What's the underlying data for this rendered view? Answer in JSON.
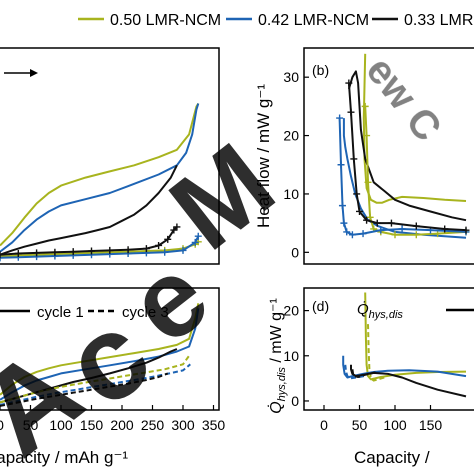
{
  "colors": {
    "lmr050": "#a8b41e",
    "lmr042": "#1e64b4",
    "lmr033": "#111111",
    "watermark_dark": "#2a2a2a",
    "watermark_blue": "#5aa8e6"
  },
  "legend": {
    "entries": [
      "0.50 LMR-NCM",
      "0.42 LMR-NCM",
      "0.33 LMR-NC"
    ]
  },
  "chart_data": [
    {
      "id": "a",
      "type": "line",
      "panel_label": "",
      "xlim": [
        0,
        350
      ],
      "ylim": [
        0,
        35
      ],
      "annotations": [],
      "series": [
        {
          "color_key": "lmr050",
          "style": "solid",
          "x": [
            0,
            20,
            40,
            60,
            80,
            100,
            140,
            180,
            220,
            260,
            290,
            310,
            322,
            325
          ],
          "y": [
            3,
            5,
            7.5,
            9.8,
            11.5,
            12.7,
            14,
            15,
            16,
            17.3,
            18.5,
            21,
            25.5,
            26
          ]
        },
        {
          "color_key": "lmr042",
          "style": "solid",
          "x": [
            0,
            20,
            40,
            60,
            80,
            100,
            140,
            180,
            220,
            260,
            290,
            305,
            315,
            322,
            325
          ],
          "y": [
            2,
            3.5,
            5.5,
            7.2,
            8.5,
            9.5,
            10.5,
            11.5,
            13,
            14.5,
            16,
            18,
            21,
            25,
            26
          ]
        },
        {
          "color_key": "lmr033",
          "style": "solid",
          "x": [
            0,
            20,
            40,
            60,
            80,
            100,
            120,
            140,
            160,
            180,
            200,
            220,
            240,
            260,
            280,
            290
          ],
          "y": [
            1.5,
            2.2,
            2.8,
            3.3,
            3.8,
            4.2,
            4.6,
            5,
            5.5,
            6,
            7,
            8,
            9.5,
            11.5,
            14,
            16
          ]
        },
        {
          "color_key": "lmr050",
          "style": "cross",
          "x": [
            0,
            30,
            60,
            90,
            120,
            150,
            180,
            210,
            240,
            270,
            300,
            320,
            325
          ],
          "y": [
            1.2,
            1.4,
            1.5,
            1.6,
            1.7,
            1.8,
            1.9,
            2,
            2.1,
            2.2,
            2.5,
            3.2,
            3.6
          ]
        },
        {
          "color_key": "lmr042",
          "style": "cross",
          "x": [
            0,
            30,
            60,
            90,
            120,
            150,
            180,
            210,
            240,
            270,
            300,
            320,
            325
          ],
          "y": [
            1,
            1.1,
            1.2,
            1.3,
            1.4,
            1.5,
            1.6,
            1.7,
            1.8,
            1.9,
            2.2,
            3.5,
            4.5
          ]
        },
        {
          "color_key": "lmr033",
          "style": "cross",
          "x": [
            0,
            30,
            60,
            90,
            120,
            150,
            180,
            210,
            240,
            260,
            275,
            285,
            290
          ],
          "y": [
            1.5,
            1.7,
            1.8,
            1.9,
            2,
            2.1,
            2.2,
            2.3,
            2.5,
            3,
            4,
            5.5,
            6
          ]
        }
      ]
    },
    {
      "id": "b",
      "type": "line",
      "panel_label": "(b)",
      "ylabel": "Heat flow / mW g⁻¹",
      "xlim": [
        0,
        350
      ],
      "ylim": [
        -2,
        35
      ],
      "yticks": [
        0,
        10,
        20,
        30
      ],
      "series": [
        {
          "color_key": "lmr050",
          "style": "solid",
          "x": [
            58,
            56,
            57,
            60,
            66,
            74,
            82,
            92,
            110,
            140,
            170,
            200
          ],
          "y": [
            34,
            23,
            16,
            11,
            9,
            8.5,
            8.5,
            9,
            9.5,
            9.3,
            9,
            8.8
          ]
        },
        {
          "color_key": "lmr042",
          "style": "solid",
          "x": [
            28,
            28,
            30,
            33,
            38,
            44,
            52,
            62,
            76,
            100,
            140,
            200
          ],
          "y": [
            23,
            20,
            18,
            16,
            13,
            10,
            7.5,
            5.5,
            4.5,
            3.5,
            3,
            2.5
          ]
        },
        {
          "color_key": "lmr033",
          "style": "solid",
          "x": [
            35,
            40,
            45,
            48,
            50,
            52,
            58,
            70,
            85,
            100,
            120,
            150,
            180,
            200
          ],
          "y": [
            28,
            30,
            31,
            29,
            25,
            21,
            16,
            12,
            10.5,
            9,
            8,
            7,
            6,
            5.5
          ]
        },
        {
          "color_key": "lmr050",
          "style": "cross",
          "x": [
            58,
            60,
            62,
            65,
            70,
            80,
            100,
            130,
            160,
            200
          ],
          "y": [
            25,
            20,
            12,
            6,
            4,
            3.5,
            3,
            3,
            3.2,
            3.5
          ]
        },
        {
          "color_key": "lmr042",
          "style": "cross",
          "x": [
            22,
            24,
            26,
            28,
            32,
            40,
            55,
            80,
            110,
            150,
            200
          ],
          "y": [
            23,
            15,
            8,
            5,
            3.5,
            3,
            3.2,
            3.8,
            4,
            3.8,
            3.5
          ]
        },
        {
          "color_key": "lmr033",
          "style": "cross",
          "x": [
            35,
            38,
            42,
            46,
            50,
            60,
            75,
            95,
            130,
            170,
            200
          ],
          "y": [
            29,
            24,
            16,
            10,
            7,
            5.5,
            5,
            5,
            4.5,
            4,
            3.8
          ]
        }
      ]
    },
    {
      "id": "c",
      "type": "line",
      "panel_label": "",
      "xlabel": "Capacity / mAh g⁻¹",
      "xlim": [
        0,
        360
      ],
      "ylim": [
        0,
        24
      ],
      "xticks": [
        0,
        50,
        100,
        150,
        200,
        250,
        300,
        350
      ],
      "xticklabels": [
        "0",
        "50",
        "100",
        "150",
        "200",
        "250",
        "300",
        "350"
      ],
      "legend": {
        "entries": [
          "cycle 1",
          "cycle 3"
        ]
      },
      "series": [
        {
          "color_key": "lmr050",
          "style": "solid",
          "x": [
            0,
            20,
            40,
            60,
            80,
            100,
            140,
            180,
            220,
            260,
            290,
            310,
            320,
            325
          ],
          "y": [
            3,
            5,
            6.5,
            7.5,
            8.2,
            8.8,
            9.6,
            10.4,
            11.2,
            12,
            12.8,
            14,
            18,
            21
          ]
        },
        {
          "color_key": "lmr042",
          "style": "solid",
          "x": [
            0,
            20,
            40,
            60,
            80,
            100,
            140,
            180,
            220,
            260,
            290,
            310,
            320,
            325
          ],
          "y": [
            2,
            3.5,
            4.8,
            5.8,
            6.5,
            7.2,
            8,
            8.8,
            9.6,
            10.5,
            11.5,
            12.5,
            16,
            20
          ]
        },
        {
          "color_key": "lmr033",
          "style": "solid",
          "x": [
            0,
            30,
            60,
            90,
            120,
            150,
            180,
            210,
            240,
            260,
            280,
            290
          ],
          "y": [
            1.5,
            2.5,
            3.5,
            4.5,
            5.5,
            6.3,
            7.2,
            8.2,
            9.3,
            10.3,
            11.5,
            12
          ]
        },
        {
          "color_key": "lmr050",
          "style": "dashed",
          "x": [
            0,
            30,
            60,
            90,
            120,
            150,
            180,
            210,
            240,
            270,
            300,
            312
          ],
          "y": [
            1.5,
            2.5,
            3.5,
            4.3,
            5,
            5.6,
            6.2,
            6.8,
            7.4,
            8,
            9,
            11
          ]
        },
        {
          "color_key": "lmr042",
          "style": "dashed",
          "x": [
            0,
            30,
            60,
            90,
            120,
            150,
            180,
            210,
            240,
            270,
            300,
            312
          ],
          "y": [
            1,
            1.8,
            2.6,
            3.3,
            3.9,
            4.5,
            5.1,
            5.7,
            6.3,
            7,
            7.8,
            9
          ]
        },
        {
          "color_key": "lmr033",
          "style": "dashed",
          "x": [
            0,
            30,
            60,
            90,
            120,
            150,
            180,
            210,
            240,
            260,
            275
          ],
          "y": [
            0.8,
            1.5,
            2.2,
            2.8,
            3.4,
            4,
            4.6,
            5.2,
            5.9,
            6.5,
            7.2
          ]
        }
      ]
    },
    {
      "id": "d",
      "type": "line",
      "panel_label": "(d)",
      "ylabel_main": "Q̇",
      "ylabel_sub": "hys,dis",
      "ylabel_rest": " / mW g⁻¹",
      "xlabel": "Capacity / ",
      "xlim": [
        0,
        350
      ],
      "ylim": [
        -2,
        25
      ],
      "xticks": [
        0,
        50,
        100,
        150
      ],
      "xticklabels": [
        "0",
        "50",
        "100",
        "150"
      ],
      "yticks": [
        0,
        10,
        20
      ],
      "legend": {
        "main": "Q̇",
        "sub": "hys,dis"
      },
      "series": [
        {
          "color_key": "lmr050",
          "style": "solid",
          "x": [
            58,
            59,
            60,
            62,
            66,
            72,
            80,
            100,
            130,
            160,
            200
          ],
          "y": [
            24,
            14,
            8,
            5.5,
            4.8,
            5,
            5.3,
            5.8,
            6.2,
            6.4,
            6.5
          ]
        },
        {
          "color_key": "lmr050",
          "style": "dashed",
          "x": [
            62,
            63,
            64,
            66,
            70,
            76,
            85
          ],
          "y": [
            17,
            11,
            7,
            5,
            4.5,
            4.8,
            5.2
          ]
        },
        {
          "color_key": "lmr042",
          "style": "solid",
          "x": [
            27,
            27,
            29,
            33,
            40,
            55,
            70,
            90,
            120,
            160,
            200
          ],
          "y": [
            10,
            8,
            6,
            5.2,
            5.5,
            6,
            6.4,
            6.7,
            6.8,
            6.5,
            5.5
          ]
        },
        {
          "color_key": "lmr042",
          "style": "dashed",
          "x": [
            30,
            31,
            33,
            37,
            45,
            60
          ],
          "y": [
            8,
            6.5,
            5.5,
            5,
            5.2,
            5.6
          ]
        },
        {
          "color_key": "lmr033",
          "style": "solid",
          "x": [
            38,
            38,
            40,
            45,
            55,
            70,
            90,
            110,
            130,
            160,
            200
          ],
          "y": [
            8,
            7,
            6,
            5.5,
            5.8,
            6.2,
            6,
            5.2,
            4,
            2.5,
            1
          ]
        },
        {
          "color_key": "lmr033",
          "style": "dashed",
          "x": [
            40,
            41,
            43,
            48,
            58,
            75
          ],
          "y": [
            7,
            6,
            5.5,
            5.3,
            5.8,
            6.4
          ]
        }
      ]
    }
  ]
}
